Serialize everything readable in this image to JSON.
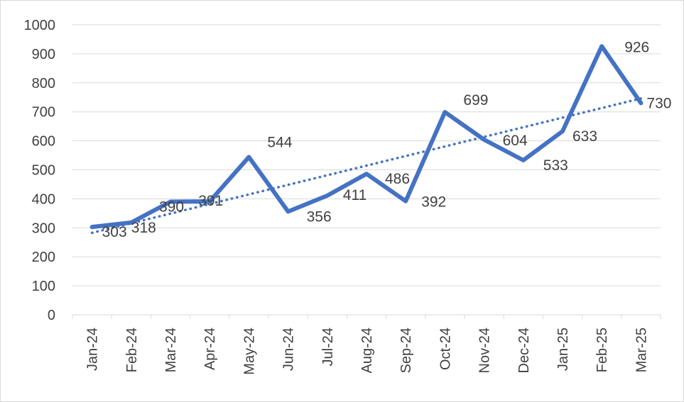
{
  "chart_data": {
    "type": "line",
    "title": "",
    "xlabel": "",
    "ylabel": "",
    "categories": [
      "Jan-24",
      "Feb-24",
      "Mar-24",
      "Apr-24",
      "May-24",
      "Jun-24",
      "Jul-24",
      "Aug-24",
      "Sep-24",
      "Oct-24",
      "Nov-24",
      "Dec-24",
      "Jan-25",
      "Feb-25",
      "Mar-25"
    ],
    "series": [
      {
        "values": [
          303,
          318,
          390,
          391,
          544,
          356,
          411,
          486,
          392,
          699,
          604,
          533,
          633,
          926,
          730
        ],
        "color": "#4472c4",
        "data_labels": true
      }
    ],
    "trendline": {
      "kind": "linear",
      "style": "dotted",
      "color": "#4472c4"
    },
    "ylim": [
      0,
      1000
    ],
    "yticks": [
      0,
      100,
      200,
      300,
      400,
      500,
      600,
      700,
      800,
      900,
      1000
    ],
    "grid": {
      "horizontal": true,
      "vertical": false
    },
    "legend": "none"
  }
}
